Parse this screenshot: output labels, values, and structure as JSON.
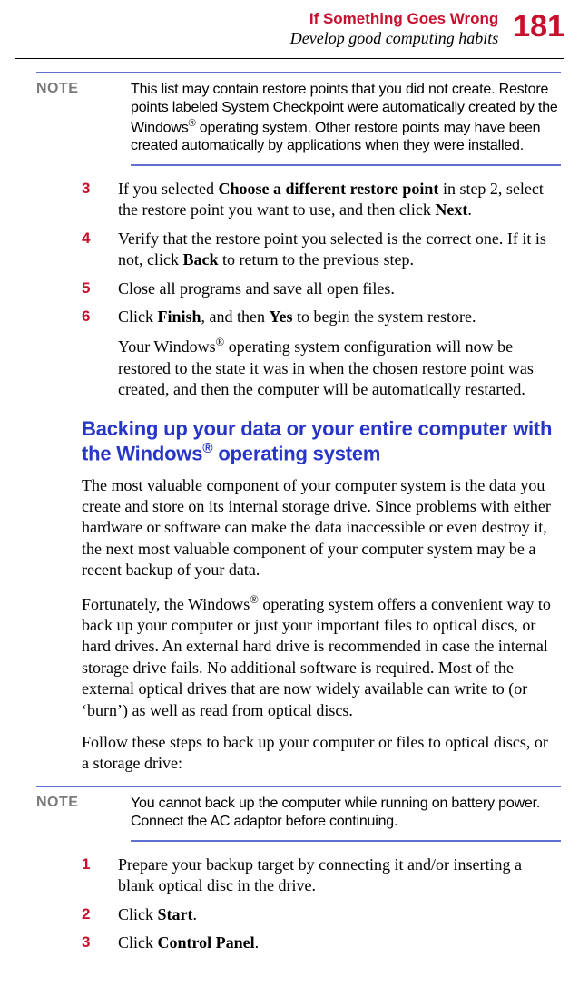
{
  "colors": {
    "accent_red": "#c8102e",
    "heading_blue": "#2836c8",
    "note_rule": "#6070d0",
    "note_label_gray": "#7a7a7a"
  },
  "typography": {
    "body_family": "Times New Roman",
    "ui_family": "Arial",
    "body_size_pt": 14,
    "heading_size_pt": 17,
    "pagenum_size_pt": 26
  },
  "header": {
    "chapter": "If Something Goes Wrong",
    "section": "Develop good computing habits",
    "page_number": "181"
  },
  "note1": {
    "label": "NOTE",
    "text": "This list may contain restore points that you did not create. Restore points labeled System Checkpoint were automatically created by the Windows® operating system. Other restore points may have been created automatically by applications when they were installed."
  },
  "steps1": [
    {
      "num": "3",
      "html": "If you selected <b>Choose a different restore point</b> in step 2, select the restore point you want to use, and then click <b>Next</b>."
    },
    {
      "num": "4",
      "html": "Verify that the restore point you selected is the correct one. If it is not, click <b>Back</b> to return to the previous step."
    },
    {
      "num": "5",
      "html": "Close all programs and save all open files."
    },
    {
      "num": "6",
      "html": "Click <b>Finish</b>, and then <b>Yes</b> to begin the system restore.",
      "sub": "Your Windows<sup>®</sup> operating system configuration will now be restored to the state it was in when the chosen restore point was created, and then the computer will be automatically restarted."
    }
  ],
  "heading2": "Backing up your data or your entire computer with the Windows® operating system",
  "body2": {
    "p1": "The most valuable component of your computer system is the data you create and store on its internal storage drive. Since problems with either hardware or software can make the data inaccessible or even destroy it, the next most valuable component of your computer system may be a recent backup of your data.",
    "p2": "Fortunately, the Windows® operating system offers a convenient way to back up your computer or just your important files to optical discs, or hard drives. An external hard drive is recommended in case the internal storage drive fails. No additional software is required. Most of the external optical drives that are now widely available can write to (or ‘burn’) as well as read from optical discs.",
    "p3": "Follow these steps to back up your computer or files to optical discs, or a storage drive:"
  },
  "note2": {
    "label": "NOTE",
    "text": "You cannot back up the computer while running on battery power. Connect the AC adaptor before continuing."
  },
  "steps2": [
    {
      "num": "1",
      "html": "Prepare your backup target by connecting it and/or inserting a blank optical disc in the drive."
    },
    {
      "num": "2",
      "html": "Click <b>Start</b>."
    },
    {
      "num": "3",
      "html": "Click <b>Control Panel</b>."
    }
  ]
}
